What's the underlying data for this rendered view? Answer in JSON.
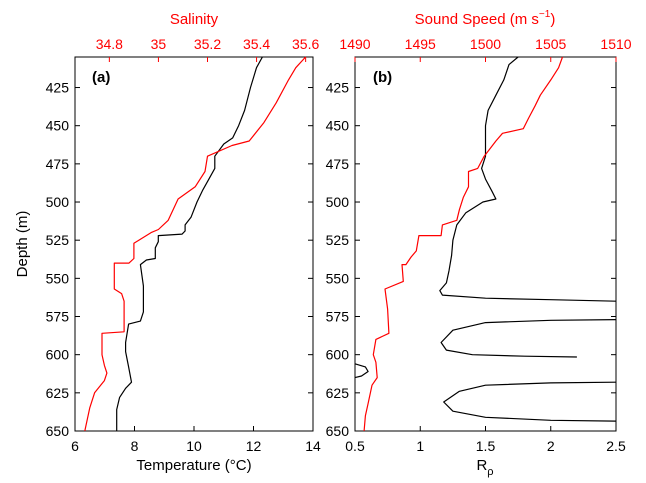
{
  "chart_data": [
    {
      "type": "line",
      "panel_label": "(a)",
      "ylabel": "Depth (m)",
      "ylim": [
        405,
        650
      ],
      "yticks": [
        425,
        450,
        475,
        500,
        525,
        550,
        575,
        600,
        625,
        650
      ],
      "xlabel_bottom": "Temperature (°C)",
      "xlim_bottom": [
        6,
        14
      ],
      "xticks_bottom": [
        6,
        8,
        10,
        12,
        14
      ],
      "xlabel_top": "Salinity",
      "xlim_top": [
        34.66,
        35.63
      ],
      "xticks_top": [
        34.8,
        35,
        35.2,
        35.4,
        35.6
      ],
      "colors": {
        "bottom_axis": "#000000",
        "top_axis": "#ff0000"
      },
      "series": [
        {
          "axis": "bottom",
          "color": "#000000",
          "points": [
            [
              12.3,
              405
            ],
            [
              12.1,
              412
            ],
            [
              11.9,
              425
            ],
            [
              11.7,
              440
            ],
            [
              11.5,
              450
            ],
            [
              11.3,
              458
            ],
            [
              11.0,
              462
            ],
            [
              10.7,
              470
            ],
            [
              10.7,
              478
            ],
            [
              10.5,
              485
            ],
            [
              10.3,
              492
            ],
            [
              10.1,
              500
            ],
            [
              9.9,
              510
            ],
            [
              9.7,
              515
            ],
            [
              9.7,
              519
            ],
            [
              9.6,
              521
            ],
            [
              8.8,
              522
            ],
            [
              8.8,
              526
            ],
            [
              8.7,
              530
            ],
            [
              8.7,
              537
            ],
            [
              8.4,
              538
            ],
            [
              8.2,
              541
            ],
            [
              8.3,
              555
            ],
            [
              8.3,
              572
            ],
            [
              8.2,
              578
            ],
            [
              7.8,
              580
            ],
            [
              7.7,
              592
            ],
            [
              7.7,
              598
            ],
            [
              7.8,
              608
            ],
            [
              7.9,
              618
            ],
            [
              7.7,
              622
            ],
            [
              7.5,
              628
            ],
            [
              7.4,
              636
            ],
            [
              7.4,
              650
            ]
          ]
        },
        {
          "axis": "top",
          "color": "#ff0000",
          "points": [
            [
              35.6,
              405
            ],
            [
              35.56,
              412
            ],
            [
              35.53,
              420
            ],
            [
              35.48,
              435
            ],
            [
              35.43,
              448
            ],
            [
              35.37,
              460
            ],
            [
              35.3,
              463
            ],
            [
              35.2,
              470
            ],
            [
              35.19,
              480
            ],
            [
              35.15,
              490
            ],
            [
              35.08,
              498
            ],
            [
              35.06,
              505
            ],
            [
              35.04,
              512
            ],
            [
              35.0,
              518
            ],
            [
              34.97,
              520
            ],
            [
              34.92,
              525
            ],
            [
              34.9,
              527
            ],
            [
              34.9,
              537
            ],
            [
              34.88,
              540
            ],
            [
              34.82,
              540
            ],
            [
              34.82,
              557
            ],
            [
              34.85,
              560
            ],
            [
              34.86,
              565
            ],
            [
              34.86,
              585
            ],
            [
              34.77,
              586
            ],
            [
              34.77,
              600
            ],
            [
              34.78,
              607
            ],
            [
              34.79,
              612
            ],
            [
              34.78,
              617
            ],
            [
              34.74,
              625
            ],
            [
              34.72,
              635
            ],
            [
              34.7,
              650
            ]
          ]
        }
      ]
    },
    {
      "type": "line",
      "panel_label": "(b)",
      "ylabel": "",
      "ylim": [
        405,
        650
      ],
      "yticks": [
        425,
        450,
        475,
        500,
        525,
        550,
        575,
        600,
        625,
        650
      ],
      "xlabel_bottom_main": "R",
      "xlabel_bottom_sub": "ρ",
      "xlim_bottom": [
        0.5,
        2.5
      ],
      "xticks_bottom": [
        "0.5",
        "1",
        "1.5",
        "2",
        "2.5"
      ],
      "xticks_bottom_values": [
        0.5,
        1.0,
        1.5,
        2.0,
        2.5
      ],
      "xlabel_top_main": "Sound Speed (m s",
      "xlabel_top_sup": "−1",
      "xlabel_top_end": ")",
      "xlim_top": [
        1490,
        1510
      ],
      "xticks_top": [
        1490,
        1495,
        1500,
        1505,
        1510
      ],
      "colors": {
        "bottom_axis": "#000000",
        "top_axis": "#ff0000"
      },
      "series": [
        {
          "axis": "bottom",
          "color": "#000000",
          "points": [
            [
              1.75,
              405
            ],
            [
              1.68,
              410
            ],
            [
              1.64,
              420
            ],
            [
              1.58,
              430
            ],
            [
              1.52,
              440
            ],
            [
              1.5,
              450
            ],
            [
              1.5,
              460
            ],
            [
              1.5,
              470
            ],
            [
              1.47,
              478
            ],
            [
              1.5,
              485
            ],
            [
              1.55,
              493
            ],
            [
              1.58,
              498
            ],
            [
              1.48,
              500
            ],
            [
              1.35,
              507
            ],
            [
              1.28,
              515
            ],
            [
              1.25,
              525
            ],
            [
              1.24,
              535
            ],
            [
              1.22,
              545
            ],
            [
              1.2,
              553
            ],
            [
              1.15,
              558
            ],
            [
              1.17,
              561
            ],
            [
              1.5,
              563
            ],
            [
              2.0,
              564
            ],
            [
              2.5,
              565
            ]
          ]
        },
        {
          "axis": "bottom",
          "color": "#000000",
          "points": [
            [
              2.5,
              577
            ],
            [
              2.0,
              577.5
            ],
            [
              1.5,
              579
            ],
            [
              1.25,
              584
            ],
            [
              1.16,
              592
            ],
            [
              1.2,
              597
            ],
            [
              1.4,
              600
            ],
            [
              1.8,
              601
            ],
            [
              2.2,
              601.5
            ]
          ]
        },
        {
          "axis": "bottom",
          "color": "#000000",
          "points": [
            [
              0.5,
              606
            ],
            [
              0.58,
              608
            ],
            [
              0.6,
              611
            ],
            [
              0.55,
              614
            ],
            [
              0.5,
              615
            ]
          ]
        },
        {
          "axis": "bottom",
          "color": "#000000",
          "points": [
            [
              2.5,
              618
            ],
            [
              2.0,
              618.5
            ],
            [
              1.5,
              620
            ],
            [
              1.3,
              624
            ],
            [
              1.18,
              631
            ],
            [
              1.25,
              637
            ],
            [
              1.5,
              641
            ],
            [
              2.0,
              643
            ],
            [
              2.5,
              643.5
            ]
          ]
        },
        {
          "axis": "top",
          "color": "#ff0000",
          "points": [
            [
              1505.9,
              405
            ],
            [
              1505.6,
              412
            ],
            [
              1505.0,
              420
            ],
            [
              1504.2,
              430
            ],
            [
              1503.8,
              437
            ],
            [
              1503.3,
              445
            ],
            [
              1502.9,
              452
            ],
            [
              1501.3,
              455
            ],
            [
              1500.8,
              460
            ],
            [
              1499.9,
              470
            ],
            [
              1499.4,
              478
            ],
            [
              1498.7,
              480
            ],
            [
              1498.7,
              490
            ],
            [
              1498.3,
              497
            ],
            [
              1498.0,
              505
            ],
            [
              1497.8,
              512
            ],
            [
              1496.7,
              515
            ],
            [
              1496.6,
              522
            ],
            [
              1494.9,
              522
            ],
            [
              1494.7,
              532
            ],
            [
              1494.3,
              536
            ],
            [
              1493.9,
              541
            ],
            [
              1493.6,
              541
            ],
            [
              1493.7,
              552
            ],
            [
              1492.3,
              557
            ],
            [
              1492.5,
              570
            ],
            [
              1492.6,
              586
            ],
            [
              1491.6,
              590
            ],
            [
              1491.4,
              600
            ],
            [
              1491.6,
              605
            ],
            [
              1491.7,
              615
            ],
            [
              1491.3,
              620
            ],
            [
              1491.0,
              632
            ],
            [
              1490.8,
              640
            ],
            [
              1490.7,
              650
            ]
          ]
        }
      ]
    }
  ]
}
